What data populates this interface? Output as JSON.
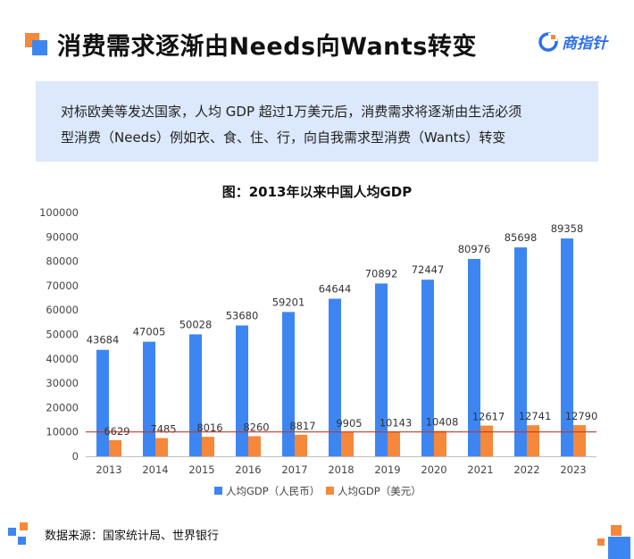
{
  "header": {
    "title": "消费需求逐渐由Needs向Wants转变",
    "logo_text": "商指针"
  },
  "description": {
    "line1": "对标欧美等发达国家，人均 GDP 超过1万美元后，消费需求将逐渐由生活必须",
    "line2": "型消费（Needs）例如衣、食、住、行，向自我需求型消费（Wants）转变"
  },
  "colors": {
    "accent_blue": "#3d86f2",
    "accent_orange": "#f5883a",
    "reference_line": "#c0392b",
    "description_bg": "#dce8fb"
  },
  "chart_data": {
    "type": "bar",
    "title": "图：2013年以来中国人均GDP",
    "categories": [
      "2013",
      "2014",
      "2015",
      "2016",
      "2017",
      "2018",
      "2019",
      "2020",
      "2021",
      "2022",
      "2023"
    ],
    "series": [
      {
        "name": "人均GDP（人民币）",
        "color": "#3d86f2",
        "values": [
          43684,
          47005,
          50028,
          53680,
          59201,
          64644,
          70892,
          72447,
          80976,
          85698,
          89358
        ]
      },
      {
        "name": "人均GDP（美元）",
        "color": "#f5883a",
        "values": [
          6629,
          7485,
          8016,
          8260,
          8817,
          9905,
          10143,
          10408,
          12617,
          12741,
          12790
        ]
      }
    ],
    "ylim": [
      0,
      100000
    ],
    "yticks": [
      0,
      10000,
      20000,
      30000,
      40000,
      50000,
      60000,
      70000,
      80000,
      90000,
      100000
    ],
    "reference_line_value": 10000,
    "legend_position": "bottom-center",
    "xlabel": "",
    "ylabel": ""
  },
  "footer": {
    "source": "数据来源：国家统计局、世界银行"
  }
}
